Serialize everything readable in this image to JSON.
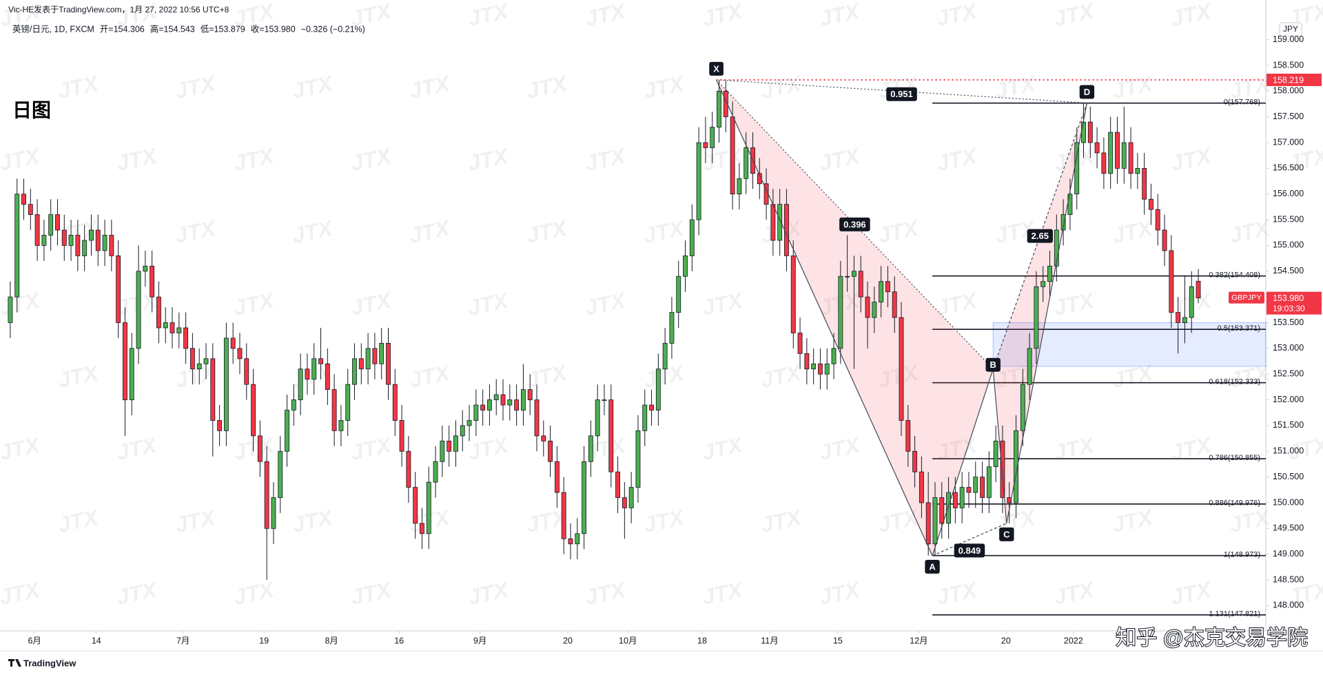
{
  "header": {
    "publisher": "Vic-HE发表于TradingView.com，1月 27, 2022 10:56 UTC+8",
    "symbol": "英镑/日元, 1D, FXCM",
    "ohlc": [
      "开=154.306",
      "高=154.543",
      "低=153.879",
      "收=153.980",
      "−0.326 (−0.21%)"
    ],
    "timeframe": "日图",
    "currency": "JPY",
    "footer": "TradingView",
    "watermark": "JTX",
    "credit": "知乎 @杰克交易学院"
  },
  "chart_data": {
    "type": "candlestick",
    "open": [
      153.5,
      154.0,
      156.0,
      155.8,
      155.6,
      155.0,
      155.2,
      155.6,
      155.3,
      155.0,
      155.2,
      154.8,
      155.1,
      155.3,
      154.9,
      155.2,
      154.8,
      153.5,
      152.0,
      153.0,
      154.5,
      154.6,
      154.0,
      153.4,
      153.5,
      153.3,
      153.4,
      153.0,
      152.6,
      152.7,
      152.8,
      151.6,
      151.4,
      153.2,
      153.0,
      152.8,
      152.3,
      151.3,
      150.8,
      149.5,
      150.1,
      151.0,
      151.8,
      152.0,
      152.6,
      152.4,
      152.8,
      152.7,
      152.2,
      151.4,
      151.6,
      152.3,
      152.8,
      152.6,
      153.0,
      152.7,
      153.1,
      152.3,
      151.6,
      151.0,
      150.3,
      149.6,
      149.4,
      150.4,
      150.8,
      151.2,
      151.0,
      151.3,
      151.5,
      151.6,
      151.9,
      151.8,
      152.0,
      152.1,
      151.9,
      152.0,
      151.8,
      152.2,
      152.0,
      151.3,
      151.2,
      150.8,
      150.2,
      149.3,
      149.2,
      149.4,
      150.8,
      151.3,
      152.0,
      152.0,
      150.6,
      150.1,
      149.9,
      150.3,
      151.4,
      151.9,
      151.8,
      152.6,
      153.1,
      153.7,
      154.4,
      154.8,
      155.5,
      157.0,
      156.9,
      157.3,
      158.0,
      157.5,
      156.0,
      156.3,
      156.9,
      156.4,
      156.2,
      155.8,
      155.1,
      155.8,
      154.8,
      153.3,
      152.9,
      152.6,
      152.7,
      152.5,
      152.7,
      153.0,
      154.4,
      154.4,
      154.5,
      154.0,
      153.6,
      153.9,
      154.3,
      154.1,
      153.6,
      151.6,
      151.0,
      150.6,
      150.0,
      149.2,
      150.1,
      149.6,
      150.2,
      149.9,
      150.3,
      150.2,
      150.5,
      150.1,
      150.7,
      151.2,
      150.1,
      150.0,
      151.4,
      152.3,
      153.0,
      154.2,
      154.3,
      154.6,
      155.3,
      155.6,
      156.0,
      157.0,
      157.4,
      157.0,
      156.8,
      156.4,
      157.2,
      156.5,
      157.0,
      156.4,
      156.5,
      155.9,
      155.7,
      155.3,
      154.9,
      153.7,
      153.5,
      153.6,
      154.306
    ],
    "high": [
      154.3,
      156.3,
      156.3,
      156.1,
      155.9,
      155.5,
      155.9,
      155.9,
      155.6,
      155.5,
      155.5,
      155.4,
      155.6,
      155.6,
      155.5,
      155.5,
      155.1,
      153.8,
      153.3,
      155.0,
      154.9,
      154.9,
      154.3,
      153.8,
      153.8,
      153.7,
      153.7,
      153.3,
      153.0,
      153.1,
      153.1,
      151.9,
      153.5,
      153.5,
      153.3,
      153.1,
      152.6,
      151.6,
      151.1,
      150.4,
      151.3,
      152.1,
      152.3,
      152.9,
      152.9,
      153.1,
      153.4,
      153.0,
      152.5,
      151.9,
      152.6,
      153.1,
      153.1,
      153.3,
      153.3,
      153.4,
      153.4,
      152.6,
      151.9,
      151.3,
      150.6,
      149.9,
      150.7,
      151.1,
      151.5,
      151.5,
      151.6,
      151.8,
      151.9,
      152.2,
      152.2,
      152.3,
      152.4,
      152.4,
      152.3,
      152.3,
      152.7,
      152.5,
      152.3,
      151.6,
      151.5,
      151.1,
      150.5,
      149.6,
      149.7,
      151.1,
      151.6,
      152.3,
      152.3,
      152.3,
      150.9,
      150.4,
      150.6,
      151.7,
      152.2,
      152.2,
      152.9,
      153.4,
      154.0,
      154.7,
      155.1,
      155.8,
      157.3,
      157.5,
      157.6,
      158.22,
      158.2,
      157.8,
      156.6,
      157.2,
      157.2,
      156.7,
      156.5,
      156.1,
      156.1,
      156.1,
      155.1,
      153.6,
      153.2,
      153.0,
      153.0,
      153.0,
      153.3,
      154.7,
      155.2,
      154.8,
      154.8,
      154.3,
      154.2,
      154.6,
      154.6,
      154.4,
      153.9,
      151.9,
      151.3,
      150.9,
      150.6,
      150.4,
      150.4,
      150.5,
      150.5,
      150.6,
      150.6,
      150.8,
      150.8,
      151.0,
      151.5,
      151.5,
      150.4,
      151.7,
      152.6,
      153.3,
      154.5,
      154.6,
      154.9,
      155.6,
      155.9,
      156.3,
      157.3,
      157.77,
      157.7,
      157.3,
      157.1,
      157.5,
      157.5,
      157.7,
      157.3,
      156.8,
      156.8,
      156.2,
      156.0,
      155.6,
      155.2,
      154.0,
      154.4,
      154.5,
      154.543
    ],
    "low": [
      153.2,
      153.7,
      155.5,
      155.3,
      154.7,
      154.7,
      154.9,
      155.0,
      154.7,
      154.7,
      154.5,
      154.5,
      154.8,
      154.6,
      154.6,
      154.5,
      153.2,
      151.3,
      151.7,
      152.7,
      154.2,
      153.7,
      153.1,
      153.1,
      153.0,
      153.0,
      152.7,
      152.3,
      152.3,
      152.4,
      150.9,
      151.1,
      151.1,
      152.7,
      152.5,
      152.0,
      151.0,
      150.5,
      148.5,
      149.2,
      149.8,
      150.7,
      151.5,
      151.7,
      152.1,
      152.1,
      152.4,
      151.9,
      151.1,
      151.1,
      151.3,
      152.0,
      152.3,
      152.3,
      152.4,
      152.4,
      152.0,
      151.3,
      150.7,
      150.0,
      149.3,
      149.1,
      149.1,
      150.1,
      150.5,
      150.7,
      150.7,
      151.0,
      151.2,
      151.3,
      151.5,
      151.5,
      151.7,
      151.6,
      151.6,
      151.5,
      151.5,
      151.7,
      151.0,
      150.9,
      150.5,
      149.9,
      149.0,
      148.9,
      148.9,
      149.1,
      150.5,
      151.0,
      151.7,
      150.3,
      149.8,
      149.3,
      149.6,
      150.0,
      151.1,
      151.5,
      151.5,
      152.3,
      152.8,
      153.4,
      154.1,
      154.5,
      155.2,
      156.6,
      156.6,
      157.0,
      157.2,
      155.7,
      155.7,
      156.0,
      156.1,
      155.9,
      155.5,
      154.8,
      154.8,
      154.5,
      153.0,
      152.6,
      152.3,
      152.3,
      152.2,
      152.2,
      152.4,
      152.7,
      154.1,
      152.6,
      153.7,
      153.0,
      153.3,
      153.6,
      153.8,
      153.3,
      151.3,
      150.7,
      150.3,
      149.7,
      148.97,
      148.97,
      149.3,
      149.3,
      149.6,
      149.6,
      149.9,
      149.9,
      149.8,
      149.8,
      150.4,
      149.8,
      149.6,
      149.7,
      151.1,
      152.0,
      152.7,
      153.9,
      154.0,
      154.3,
      155.0,
      155.3,
      155.7,
      156.7,
      156.7,
      156.5,
      156.1,
      156.1,
      156.2,
      156.2,
      156.1,
      156.1,
      155.6,
      155.4,
      155.0,
      154.6,
      153.4,
      152.9,
      153.1,
      153.3,
      153.879
    ],
    "close": [
      154.0,
      156.0,
      155.8,
      155.6,
      155.0,
      155.2,
      155.6,
      155.3,
      155.0,
      155.2,
      154.8,
      155.1,
      155.3,
      154.9,
      155.2,
      154.8,
      153.5,
      152.0,
      153.0,
      154.5,
      154.6,
      154.0,
      153.4,
      153.5,
      153.3,
      153.4,
      153.0,
      152.6,
      152.7,
      152.8,
      151.6,
      151.4,
      153.2,
      153.0,
      152.8,
      152.3,
      151.3,
      150.8,
      149.5,
      150.1,
      151.0,
      151.8,
      152.0,
      152.6,
      152.4,
      152.8,
      152.7,
      152.2,
      151.4,
      151.6,
      152.3,
      152.8,
      152.6,
      153.0,
      152.7,
      153.1,
      152.3,
      151.6,
      151.0,
      150.3,
      149.6,
      149.4,
      150.4,
      150.8,
      151.2,
      151.0,
      151.3,
      151.5,
      151.6,
      151.9,
      151.8,
      152.0,
      152.1,
      151.9,
      152.0,
      151.8,
      152.2,
      152.0,
      151.3,
      151.2,
      150.8,
      150.2,
      149.3,
      149.2,
      149.4,
      150.8,
      151.3,
      152.0,
      152.0,
      150.6,
      150.1,
      149.9,
      150.3,
      151.4,
      151.9,
      151.8,
      152.6,
      153.1,
      153.7,
      154.4,
      154.8,
      155.5,
      157.0,
      156.9,
      157.3,
      158.0,
      157.5,
      156.0,
      156.3,
      156.9,
      156.4,
      156.2,
      155.8,
      155.1,
      155.8,
      154.8,
      153.3,
      152.9,
      152.6,
      152.7,
      152.5,
      152.7,
      153.0,
      154.4,
      154.4,
      154.5,
      154.0,
      153.6,
      153.9,
      154.3,
      154.1,
      153.6,
      151.6,
      151.0,
      150.6,
      150.0,
      149.2,
      150.1,
      149.6,
      150.2,
      149.9,
      150.3,
      150.2,
      150.5,
      150.1,
      150.7,
      151.2,
      150.1,
      150.0,
      151.4,
      152.3,
      153.0,
      154.2,
      154.3,
      154.6,
      155.3,
      155.6,
      156.0,
      157.0,
      157.4,
      157.0,
      156.8,
      156.4,
      157.2,
      156.5,
      157.0,
      156.4,
      156.5,
      155.9,
      155.7,
      155.3,
      154.9,
      153.7,
      153.5,
      153.6,
      154.2,
      153.98
    ],
    "colors": {
      "up": "#4caf50",
      "down": "#f23645"
    },
    "xlim": [
      -0.5,
      186
    ],
    "xticks": [
      {
        "value": 3.6,
        "label": "6月"
      },
      {
        "value": 12.75,
        "label": "14"
      },
      {
        "value": 25.6,
        "label": "7月"
      },
      {
        "value": 37.6,
        "label": "19"
      },
      {
        "value": 47.6,
        "label": "8月"
      },
      {
        "value": 57.6,
        "label": "16"
      },
      {
        "value": 69.6,
        "label": "9月"
      },
      {
        "value": 82.6,
        "label": "20"
      },
      {
        "value": 91.5,
        "label": "10月"
      },
      {
        "value": 102.5,
        "label": "18"
      },
      {
        "value": 112.5,
        "label": "11月"
      },
      {
        "value": 122.6,
        "label": "15"
      },
      {
        "value": 134.6,
        "label": "12月"
      },
      {
        "value": 147.5,
        "label": "20"
      },
      {
        "value": 157.5,
        "label": "2022"
      }
    ],
    "ylim": [
      147.51,
      159.41
    ],
    "yticks": [
      {
        "value": 148,
        "label": "148.000"
      },
      {
        "value": 148.5,
        "label": "148.500"
      },
      {
        "value": 149,
        "label": "149.000"
      },
      {
        "value": 149.5,
        "label": "149.500"
      },
      {
        "value": 150,
        "label": "150.000"
      },
      {
        "value": 150.5,
        "label": "150.500"
      },
      {
        "value": 151,
        "label": "151.000"
      },
      {
        "value": 151.5,
        "label": "151.500"
      },
      {
        "value": 152,
        "label": "152.000"
      },
      {
        "value": 152.5,
        "label": "152.500"
      },
      {
        "value": 153,
        "label": "153.000"
      },
      {
        "value": 153.5,
        "label": "153.500"
      },
      {
        "value": 154,
        "label": "154.000"
      },
      {
        "value": 154.5,
        "label": "154.500"
      },
      {
        "value": 155,
        "label": "155.000"
      },
      {
        "value": 155.5,
        "label": "155.500"
      },
      {
        "value": 156,
        "label": "156.000"
      },
      {
        "value": 156.5,
        "label": "156.500"
      },
      {
        "value": 157,
        "label": "157.000"
      },
      {
        "value": 157.5,
        "label": "157.500"
      },
      {
        "value": 158,
        "label": "158.000"
      },
      {
        "value": 158.5,
        "label": "158.500"
      },
      {
        "value": 159,
        "label": "159.000"
      }
    ],
    "grid": false,
    "fib": {
      "values": [
        157.768,
        154.408,
        153.371,
        152.333,
        150.855,
        149.976,
        148.973,
        147.821
      ],
      "value_labels": [
        "0(157.768)",
        "0.382(154.408)",
        "0.5(153.371)",
        "0.618(152.333)",
        "0.786(150.855)",
        "0.886(149.976)",
        "1(148.973)",
        "1.131(147.821)"
      ]
    },
    "zone": {
      "low": 152.65,
      "high": 153.5
    },
    "pattern": {
      "points": [
        {
          "label": "X",
          "x": 104.6,
          "y": 158.22
        },
        {
          "label": "A",
          "x": 136.6,
          "y": 148.97
        },
        {
          "label": "B",
          "x": 145.6,
          "y": 152.6
        },
        {
          "label": "C",
          "x": 147.6,
          "y": 149.6
        },
        {
          "label": "D",
          "x": 159.5,
          "y": 157.77
        }
      ],
      "ratios": [
        0.396,
        0.951,
        0.849,
        2.65
      ]
    },
    "x_high": 158.219,
    "last": {
      "symbol": "GBPJPY",
      "value": 153.98,
      "value_label": "153.980",
      "countdown": "19:03:30"
    }
  }
}
